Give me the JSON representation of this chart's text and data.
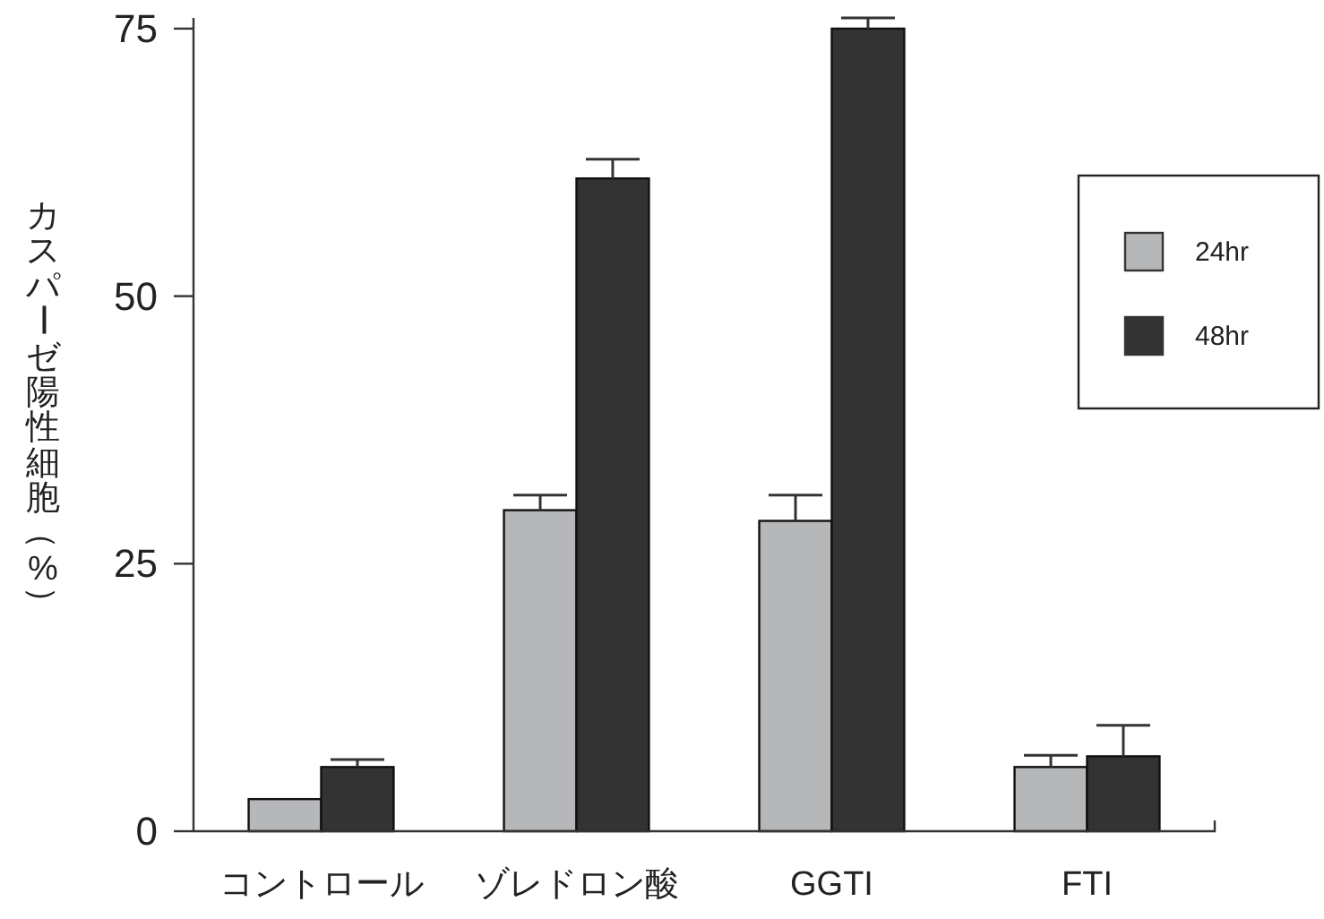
{
  "chart_data": {
    "type": "bar",
    "ylabel": "カスパーゼ陽性細胞（%）",
    "categories": [
      "コントロール",
      "ゾレドロン酸",
      "GGTI",
      "FTI"
    ],
    "series": [
      {
        "name": "24hr",
        "color": "#b6b7b9",
        "values": [
          3,
          30,
          29,
          6
        ],
        "errors": [
          null,
          [
            30,
            31.4
          ],
          [
            29,
            31.4
          ],
          [
            6,
            7.1
          ]
        ]
      },
      {
        "name": "48hr",
        "color": "#333333",
        "values": [
          6,
          61,
          75,
          7
        ],
        "errors": [
          [
            6,
            6.7
          ],
          [
            61,
            62.8
          ],
          [
            75,
            76
          ],
          [
            7,
            9.9
          ]
        ]
      }
    ],
    "ylim": [
      0,
      76
    ],
    "yticks": [
      0,
      25,
      50,
      75
    ],
    "legend": "top right"
  }
}
